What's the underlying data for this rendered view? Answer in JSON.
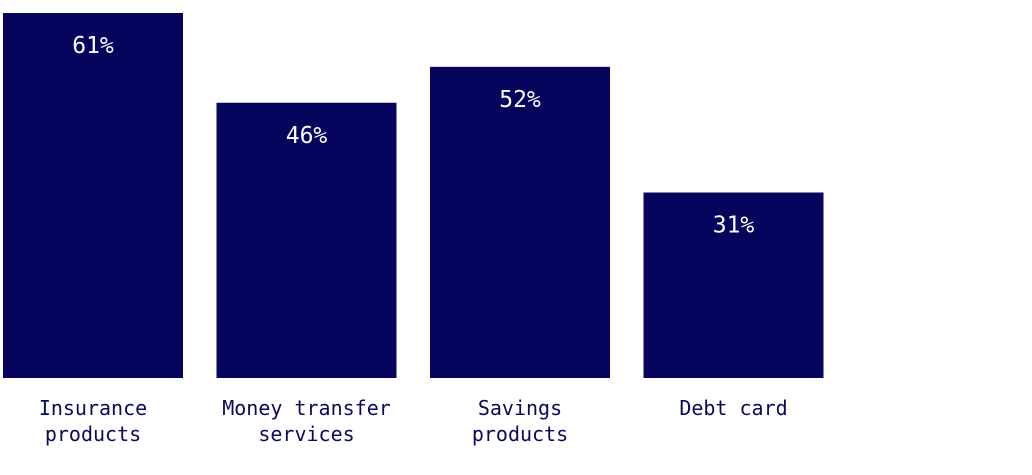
{
  "chart_data": {
    "type": "bar",
    "categories": [
      [
        "Insurance",
        "products"
      ],
      [
        "Money transfer",
        "services"
      ],
      [
        "Savings",
        "products"
      ],
      [
        "Debt card"
      ]
    ],
    "values": [
      61,
      46,
      52,
      31
    ],
    "data_labels": [
      "61%",
      "46%",
      "52%",
      "31%"
    ],
    "unit": "%",
    "ylim": [
      0,
      61
    ],
    "grid": false,
    "bar_color": "#05055e"
  }
}
